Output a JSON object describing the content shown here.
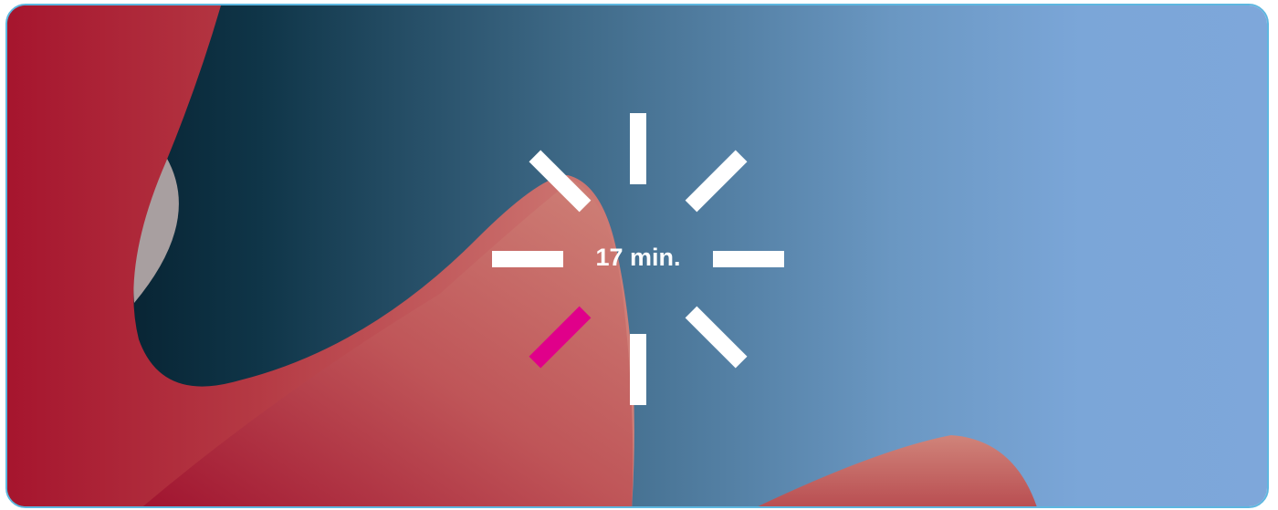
{
  "timer": {
    "label": "17 min."
  }
}
